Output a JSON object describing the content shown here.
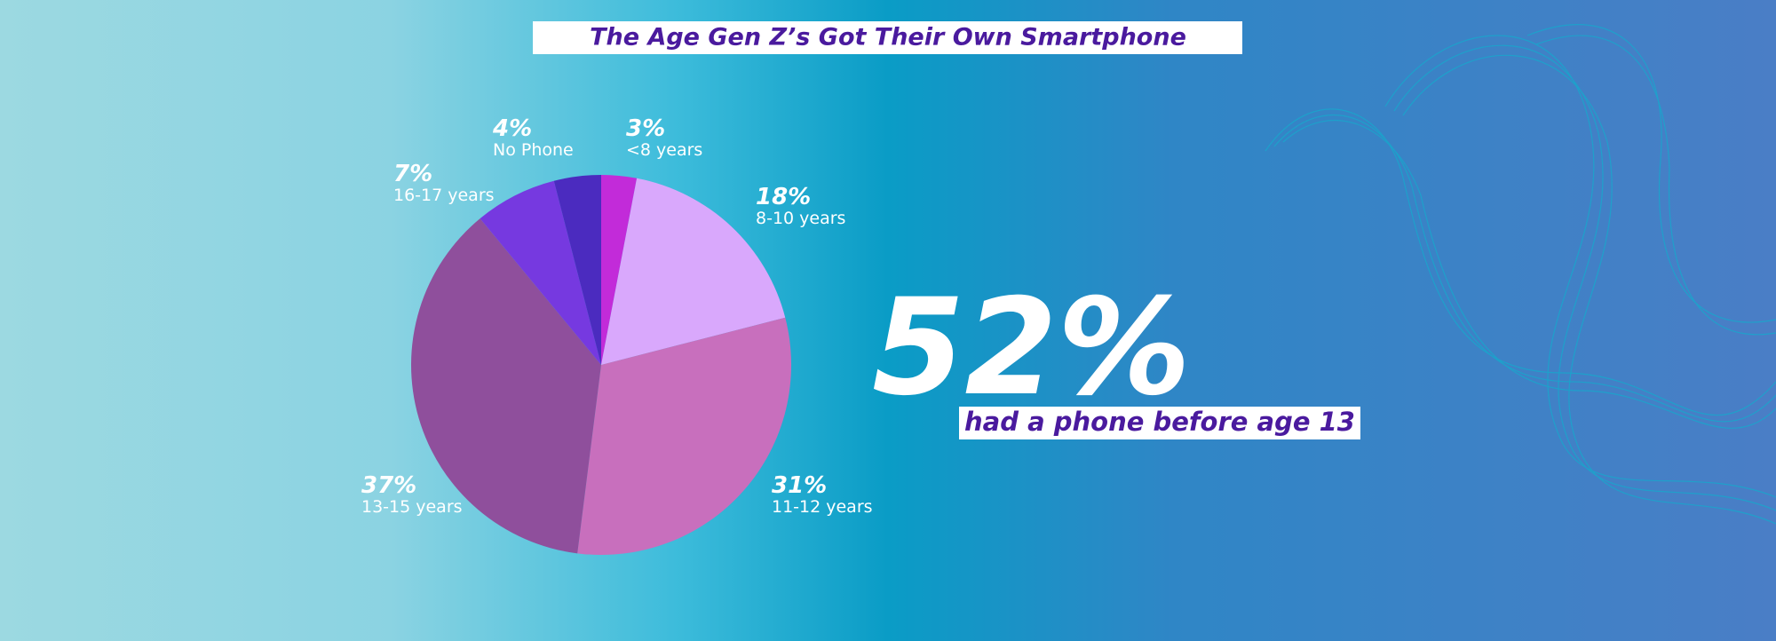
{
  "chart_data": {
    "type": "pie",
    "title": "The Age Gen Z’s Got Their Own Smartphone",
    "categories": [
      "<8 years",
      "8-10 years",
      "11-12 years",
      "13-15 years",
      "16-17 years",
      "No Phone"
    ],
    "values": [
      3,
      18,
      31,
      37,
      7,
      4
    ],
    "value_labels": [
      "3%",
      "18%",
      "31%",
      "37%",
      "7%",
      "4%"
    ],
    "colors": [
      "#c22bd9",
      "#d9a8fc",
      "#c86fbd",
      "#8f4f9c",
      "#7639e0",
      "#4b2bbf"
    ],
    "highlight": "52%",
    "highlight_caption": "had a phone before age 13"
  }
}
